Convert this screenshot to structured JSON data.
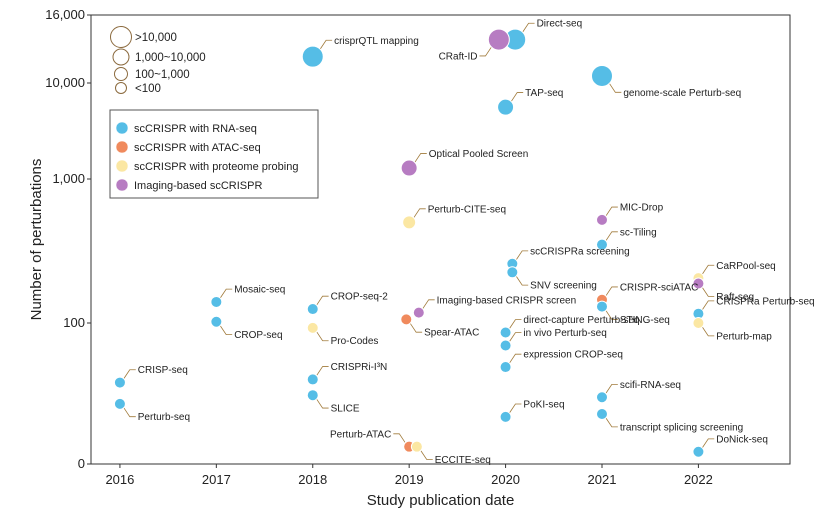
{
  "chart_data": {
    "type": "scatter",
    "title": "",
    "xlabel": "Study publication date",
    "ylabel": "Number of perturbations",
    "x_ticks": [
      2016,
      2017,
      2018,
      2019,
      2020,
      2021,
      2022
    ],
    "x_tick_labels": [
      "2016",
      "2017",
      "2018",
      "2019",
      "2020",
      "2021",
      "2022"
    ],
    "xlim": [
      2015.7,
      2022.95
    ],
    "y_scale": "log (zero shown at bottom)",
    "y_ticks": [
      0,
      100,
      1000,
      10000,
      16000
    ],
    "y_tick_labels": [
      "0",
      "100",
      "1,000",
      "10,000",
      "16,000"
    ],
    "grid": false,
    "size_legend": {
      "placement": "top-left",
      "entries": [
        ">10,000",
        "1,000~10,000",
        "100~1,000",
        "<100"
      ]
    },
    "legend": {
      "placement": "top-left",
      "entries": [
        {
          "key": "rna",
          "label": "scCRISPR with RNA-seq",
          "color": "#55bde6"
        },
        {
          "key": "atac",
          "label": "scCRISPR with ATAC-seq",
          "color": "#f08a5d"
        },
        {
          "key": "prot",
          "label": "scCRISPR with proteome probing",
          "color": "#fbe7a3"
        },
        {
          "key": "img",
          "label": "Imaging-based scCRISPR",
          "color": "#b77cc2"
        }
      ]
    },
    "points": [
      {
        "label": "CRISP-seq",
        "x": 2016.0,
        "y": 36,
        "cat": "rna",
        "size": 3,
        "ann": "ne"
      },
      {
        "label": "Perturb-seq",
        "x": 2016.0,
        "y": 25,
        "cat": "rna",
        "size": 3,
        "ann": "se"
      },
      {
        "label": "Mosaic-seq",
        "x": 2017.0,
        "y": 140,
        "cat": "rna",
        "size": 3,
        "ann": "ne"
      },
      {
        "label": "CROP-seq",
        "x": 2017.0,
        "y": 102,
        "cat": "rna",
        "size": 3,
        "ann": "se"
      },
      {
        "label": "crisprQTL mapping",
        "x": 2018.0,
        "y": 12000,
        "cat": "rna",
        "size": 0,
        "ann": "ne"
      },
      {
        "label": "CROP-seq-2",
        "x": 2018.0,
        "y": 125,
        "cat": "rna",
        "size": 3,
        "ann": "ne"
      },
      {
        "label": "Pro-Codes",
        "x": 2018.0,
        "y": 92,
        "cat": "prot",
        "size": 3,
        "ann": "se"
      },
      {
        "label": "CRISPRi-I³N",
        "x": 2018.0,
        "y": 38,
        "cat": "rna",
        "size": 3,
        "ann": "ne"
      },
      {
        "label": "SLICE",
        "x": 2018.0,
        "y": 29,
        "cat": "rna",
        "size": 3,
        "ann": "se"
      },
      {
        "label": "Optical Pooled Screen",
        "x": 2019.0,
        "y": 1300,
        "cat": "img",
        "size": 1,
        "ann": "ne"
      },
      {
        "label": "Perturb-CITE-seq",
        "x": 2019.0,
        "y": 500,
        "cat": "prot",
        "size": 2,
        "ann": "ne"
      },
      {
        "label": "Imaging-based CRISPR screen",
        "x": 2019.1,
        "y": 118,
        "cat": "img",
        "size": 3,
        "ann": "ne"
      },
      {
        "label": "Spear-ATAC",
        "x": 2018.97,
        "y": 106,
        "cat": "atac",
        "size": 3,
        "ann": "se"
      },
      {
        "label": "Perturb-ATAC",
        "x": 2019.0,
        "y": 12,
        "cat": "atac",
        "size": 3,
        "ann": "nw"
      },
      {
        "label": "ECCITE-seq",
        "x": 2019.08,
        "y": 12,
        "cat": "prot",
        "size": 3,
        "ann": "se"
      },
      {
        "label": "Direct-seq",
        "x": 2020.1,
        "y": 13500,
        "cat": "rna",
        "size": 0,
        "ann": "ne"
      },
      {
        "label": "CRaft-ID",
        "x": 2019.93,
        "y": 13500,
        "cat": "img",
        "size": 0,
        "ann": "sw"
      },
      {
        "label": "TAP-seq",
        "x": 2020.0,
        "y": 5600,
        "cat": "rna",
        "size": 1,
        "ann": "ne"
      },
      {
        "label": "scCRISPRa screening",
        "x": 2020.07,
        "y": 258,
        "cat": "rna",
        "size": 3,
        "ann": "ne"
      },
      {
        "label": "SNV screening",
        "x": 2020.07,
        "y": 225,
        "cat": "rna",
        "size": 3,
        "ann": "se"
      },
      {
        "label": "direct-capture Perturb-seq",
        "x": 2020.0,
        "y": 85,
        "cat": "rna",
        "size": 3,
        "ann": "ne"
      },
      {
        "label": "in vivo Perturb-seq",
        "x": 2020.0,
        "y": 68,
        "cat": "rna",
        "size": 3,
        "ann": "ne"
      },
      {
        "label": "expression CROP-seq",
        "x": 2020.0,
        "y": 47,
        "cat": "rna",
        "size": 3,
        "ann": "ne"
      },
      {
        "label": "PoKI-seq",
        "x": 2020.0,
        "y": 20,
        "cat": "rna",
        "size": 3,
        "ann": "ne"
      },
      {
        "label": "genome-scale Perturb-seq",
        "x": 2021.0,
        "y": 10500,
        "cat": "rna",
        "size": 0,
        "ann": "se"
      },
      {
        "label": "MIC-Drop",
        "x": 2021.0,
        "y": 520,
        "cat": "img",
        "size": 3,
        "ann": "ne"
      },
      {
        "label": "sc-Tiling",
        "x": 2021.0,
        "y": 350,
        "cat": "rna",
        "size": 3,
        "ann": "ne"
      },
      {
        "label": "CRISPR-sciATAC",
        "x": 2021.0,
        "y": 145,
        "cat": "atac",
        "size": 3,
        "ann": "ne"
      },
      {
        "label": "STING-seq",
        "x": 2021.0,
        "y": 130,
        "cat": "rna",
        "size": 3,
        "ann": "se"
      },
      {
        "label": "scifi-RNA-seq",
        "x": 2021.0,
        "y": 28,
        "cat": "rna",
        "size": 3,
        "ann": "ne"
      },
      {
        "label": "transcript splicing screening",
        "x": 2021.0,
        "y": 21,
        "cat": "rna",
        "size": 3,
        "ann": "se"
      },
      {
        "label": "CaRPool-seq",
        "x": 2022.0,
        "y": 205,
        "cat": "prot",
        "size": 3,
        "ann": "ne"
      },
      {
        "label": "Raft-seq",
        "x": 2022.0,
        "y": 188,
        "cat": "img",
        "size": 3,
        "ann": "se"
      },
      {
        "label": "CRISPRa Perturb-seq",
        "x": 2022.0,
        "y": 116,
        "cat": "rna",
        "size": 3,
        "ann": "ne"
      },
      {
        "label": "Perturb-map",
        "x": 2022.0,
        "y": 100,
        "cat": "prot",
        "size": 3,
        "ann": "se"
      },
      {
        "label": "DoNick-seq",
        "x": 2022.0,
        "y": 11,
        "cat": "rna",
        "size": 3,
        "ann": "ne"
      }
    ]
  }
}
